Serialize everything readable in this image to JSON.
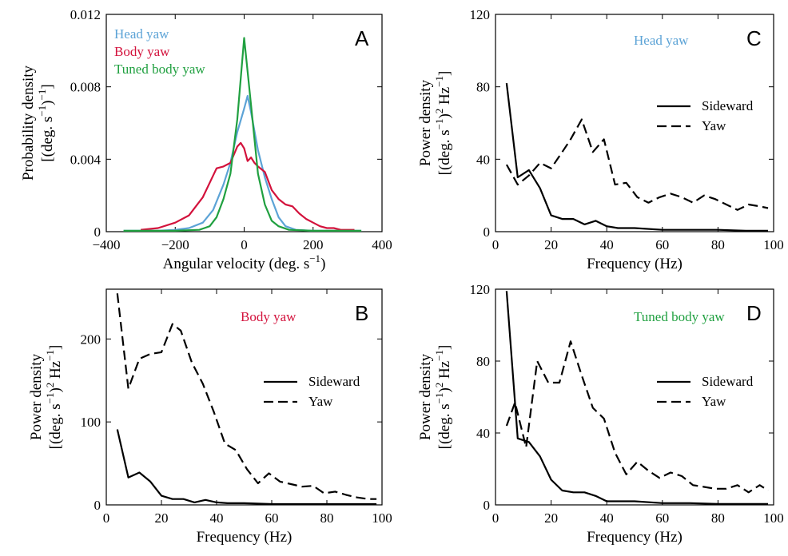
{
  "chart_data": [
    {
      "panel": "A",
      "type": "line",
      "xlabel": "Angular velocity (deg. s",
      "xlabel_sup": "−1",
      "xlabel_end": ")",
      "ylabel_1": "Probability density",
      "ylabel_2": "[(deg. s",
      "ylabel_2_sup": "−1",
      "ylabel_2_end": ")",
      "ylabel_2_sup2": "−1",
      "ylabel_2_tail": "]",
      "xlim": [
        -400,
        400
      ],
      "ylim": [
        0,
        0.012
      ],
      "xticks": [
        -400,
        -200,
        0,
        200,
        400
      ],
      "xtick_labels": [
        "−400",
        "−200",
        "0",
        "200",
        "400"
      ],
      "yticks": [
        0,
        0.004,
        0.008,
        0.012
      ],
      "ytick_labels": [
        "0",
        "0.004",
        "0.008",
        "0.012"
      ],
      "legend_position": "top-left",
      "series": [
        {
          "name": "Head yaw",
          "color": "#5ca3d6",
          "x": [
            -350,
            -300,
            -250,
            -200,
            -160,
            -120,
            -90,
            -60,
            -40,
            -20,
            0,
            10,
            20,
            40,
            60,
            80,
            100,
            120,
            150,
            200,
            250,
            300,
            340
          ],
          "y": [
            5e-05,
            5e-05,
            5e-05,
            0.0001,
            0.0002,
            0.0005,
            0.0012,
            0.0026,
            0.0038,
            0.0055,
            0.0068,
            0.0075,
            0.0066,
            0.0045,
            0.003,
            0.0018,
            0.0008,
            0.0003,
            0.0001,
            5e-05,
            5e-05,
            5e-05,
            5e-05
          ]
        },
        {
          "name": "Body yaw",
          "color": "#d3123c",
          "x": [
            -300,
            -250,
            -200,
            -160,
            -140,
            -120,
            -100,
            -80,
            -60,
            -40,
            -20,
            -10,
            0,
            10,
            20,
            30,
            40,
            60,
            80,
            100,
            120,
            140,
            160,
            180,
            200,
            220,
            240,
            260,
            280,
            300,
            320
          ],
          "y": [
            0.0001,
            0.0002,
            0.0005,
            0.0009,
            0.0014,
            0.0019,
            0.0027,
            0.0035,
            0.0036,
            0.0038,
            0.0047,
            0.0049,
            0.0046,
            0.0039,
            0.0041,
            0.0038,
            0.0036,
            0.0033,
            0.0023,
            0.0018,
            0.0015,
            0.0014,
            0.001,
            0.0007,
            0.0005,
            0.0003,
            0.0002,
            0.0002,
            0.0001,
            0.0001,
            0.0001
          ]
        },
        {
          "name": "Tuned body yaw",
          "color": "#20a040",
          "x": [
            -350,
            -300,
            -200,
            -130,
            -100,
            -80,
            -60,
            -40,
            -20,
            0,
            20,
            40,
            60,
            80,
            100,
            130,
            200,
            300,
            340
          ],
          "y": [
            5e-05,
            5e-05,
            5e-05,
            0.0001,
            0.0003,
            0.0008,
            0.0018,
            0.0032,
            0.0062,
            0.0107,
            0.007,
            0.0032,
            0.0015,
            0.0006,
            0.0003,
            0.0001,
            5e-05,
            5e-05,
            5e-05
          ]
        }
      ]
    },
    {
      "panel": "B",
      "type": "line",
      "inset_title": "Body yaw",
      "inset_title_color": "#d3123c",
      "xlabel": "Frequency (Hz)",
      "ylabel_1": "Power density",
      "ylabel_2": "[(deg. s",
      "ylabel_2_sup": "−1",
      "ylabel_2_end": ")",
      "ylabel_2_sup2": "2",
      "ylabel_2_tail": " Hz",
      "ylabel_2_sup3": "−1",
      "ylabel_2_tail2": "]",
      "xlim": [
        0,
        100
      ],
      "ylim": [
        0,
        260
      ],
      "xticks": [
        0,
        20,
        40,
        60,
        80,
        100
      ],
      "xtick_labels": [
        "0",
        "20",
        "40",
        "60",
        "80",
        "100"
      ],
      "yticks": [
        0,
        100,
        200
      ],
      "ytick_labels": [
        "0",
        "100",
        "200"
      ],
      "legend_position": "center-right",
      "series": [
        {
          "name": "Sideward",
          "style": "solid",
          "x": [
            4,
            8,
            12,
            16,
            20,
            24,
            28,
            32,
            36,
            40,
            44,
            50,
            60,
            70,
            80,
            90,
            98
          ],
          "y": [
            91,
            33,
            39,
            28,
            11,
            7,
            7,
            3,
            6,
            3,
            2,
            2,
            1,
            1,
            1,
            1,
            1
          ]
        },
        {
          "name": "Yaw",
          "style": "dashed",
          "x": [
            4,
            8,
            12,
            16,
            20,
            24,
            27,
            31,
            35,
            39,
            43,
            47,
            51,
            55,
            59,
            63,
            67,
            71,
            75,
            79,
            83,
            87,
            91,
            95,
            98
          ],
          "y": [
            255,
            140,
            176,
            182,
            184,
            218,
            210,
            172,
            146,
            112,
            74,
            66,
            43,
            26,
            38,
            28,
            25,
            22,
            23,
            14,
            16,
            12,
            9,
            7,
            7
          ]
        }
      ]
    },
    {
      "panel": "C",
      "type": "line",
      "inset_title": "Head yaw",
      "inset_title_color": "#5ca3d6",
      "xlabel": "Frequency (Hz)",
      "ylabel_1": "Power density",
      "ylabel_2": "[(deg. s",
      "ylabel_2_sup": "−1",
      "ylabel_2_end": ")",
      "ylabel_2_sup2": "2",
      "ylabel_2_tail": " Hz",
      "ylabel_2_sup3": "−1",
      "ylabel_2_tail2": "]",
      "xlim": [
        0,
        100
      ],
      "ylim": [
        0,
        120
      ],
      "xticks": [
        0,
        20,
        40,
        60,
        80,
        100
      ],
      "xtick_labels": [
        "0",
        "20",
        "40",
        "60",
        "80",
        "100"
      ],
      "yticks": [
        0,
        40,
        80,
        120
      ],
      "ytick_labels": [
        "0",
        "40",
        "80",
        "120"
      ],
      "legend_position": "top-right",
      "series": [
        {
          "name": "Sideward",
          "style": "solid",
          "x": [
            4,
            8,
            12,
            16,
            20,
            24,
            28,
            32,
            36,
            40,
            44,
            50,
            60,
            70,
            80,
            90,
            98
          ],
          "y": [
            82,
            30,
            34,
            24,
            9,
            7,
            7,
            4,
            6,
            3,
            2,
            2,
            1,
            1,
            1,
            0.5,
            0.5
          ]
        },
        {
          "name": "Yaw",
          "style": "dashed",
          "x": [
            4,
            8,
            12,
            16,
            20,
            24,
            27,
            31,
            35,
            39,
            43,
            47,
            51,
            55,
            59,
            63,
            67,
            71,
            75,
            79,
            83,
            87,
            91,
            95,
            98
          ],
          "y": [
            37,
            26,
            31,
            38,
            35,
            44,
            51,
            62,
            44,
            51,
            26,
            27,
            19,
            16,
            19,
            21,
            19,
            16,
            20,
            18,
            15,
            12,
            15,
            14,
            13
          ]
        }
      ]
    },
    {
      "panel": "D",
      "type": "line",
      "inset_title": "Tuned body yaw",
      "inset_title_color": "#20a040",
      "xlabel": "Frequency (Hz)",
      "ylabel_1": "Power density",
      "ylabel_2": "[(deg. s",
      "ylabel_2_sup": "−1",
      "ylabel_2_end": ")",
      "ylabel_2_sup2": "2",
      "ylabel_2_tail": " Hz",
      "ylabel_2_sup3": "−1",
      "ylabel_2_tail2": "]",
      "xlim": [
        0,
        100
      ],
      "ylim": [
        0,
        120
      ],
      "xticks": [
        0,
        20,
        40,
        60,
        80,
        100
      ],
      "xtick_labels": [
        "0",
        "20",
        "40",
        "60",
        "80",
        "100"
      ],
      "yticks": [
        0,
        40,
        80,
        120
      ],
      "ytick_labels": [
        "0",
        "40",
        "80",
        "120"
      ],
      "legend_position": "center-right",
      "series": [
        {
          "name": "Sideward",
          "style": "solid",
          "x": [
            4,
            8,
            12,
            16,
            20,
            24,
            28,
            32,
            36,
            40,
            44,
            50,
            60,
            70,
            80,
            90,
            98
          ],
          "y": [
            119,
            37,
            35,
            27,
            14,
            8,
            7,
            7,
            5,
            2,
            2,
            2,
            1,
            1,
            0.5,
            0.5,
            0.5
          ]
        },
        {
          "name": "Yaw",
          "style": "dashed",
          "x": [
            4,
            7,
            11,
            15,
            19,
            23,
            27,
            31,
            35,
            39,
            43,
            47,
            51,
            55,
            59,
            63,
            67,
            71,
            75,
            79,
            83,
            87,
            91,
            95,
            98
          ],
          "y": [
            44,
            57,
            32,
            80,
            68,
            68,
            91,
            72,
            54,
            48,
            29,
            17,
            24,
            19,
            15,
            18,
            16,
            11,
            10,
            9,
            9,
            11,
            7,
            11,
            8
          ]
        }
      ]
    }
  ]
}
